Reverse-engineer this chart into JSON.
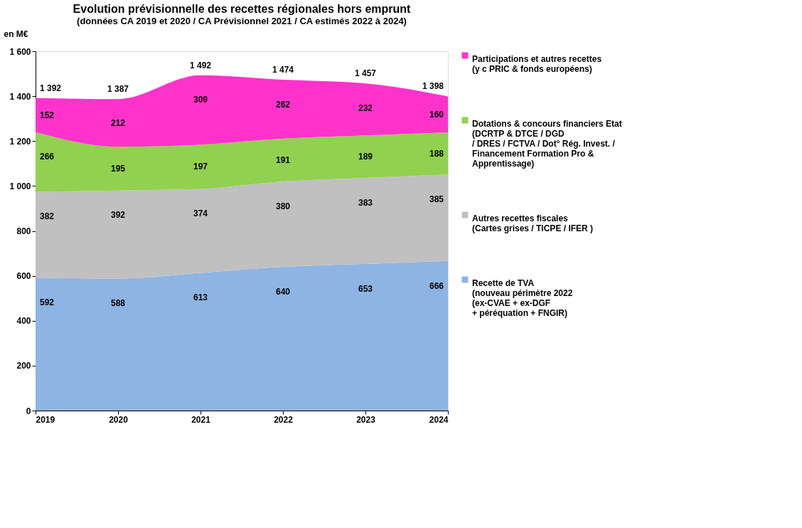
{
  "chart_data": {
    "type": "area",
    "stacked": true,
    "title": "Evolution prévisionnelle des recettes régionales hors emprunt",
    "subtitle": "(données CA 2019 et 2020 /  CA Prévisionnel 2021 / CA estimés 2022 à 2024)",
    "ylabel": "en M€",
    "x": [
      2019,
      2020,
      2021,
      2022,
      2023,
      2024
    ],
    "xlim": [
      2019,
      2024
    ],
    "xticks": [
      2019,
      2020,
      2021,
      2022,
      2023,
      2024
    ],
    "ylim": [
      0,
      1600
    ],
    "yticks": [
      0,
      200,
      400,
      600,
      800,
      {
        "value": 1000,
        "label": "1 000"
      },
      {
        "value": 1200,
        "label": "1 200"
      },
      {
        "value": 1400,
        "label": "1 400"
      },
      {
        "value": 1600,
        "label": "1 600"
      }
    ],
    "series": [
      {
        "name": "Recette de TVA\n(nouveau périmètre 2022\n(ex-CVAE + ex-DGF\n+ péréquation + FNGIR)",
        "color": "#8eb4e3",
        "values": [
          592,
          588,
          613,
          640,
          653,
          666
        ]
      },
      {
        "name": "Autres recettes fiscales\n(Cartes grises / TICPE / IFER )",
        "color": "#c0c0c0",
        "values": [
          382,
          392,
          374,
          380,
          383,
          385
        ]
      },
      {
        "name": "Dotations & concours financiers Etat\n(DCRTP & DTCE / DGD\n/ DRES / FCTVA / Dot° Rég. Invest. /\nFinancement Formation Pro &\nApprentissage)",
        "color": "#92d050",
        "values": [
          266,
          195,
          197,
          191,
          189,
          188
        ]
      },
      {
        "name": "Participations et autres recettes\n(y c PRIC & fonds européens)",
        "color": "#ff33cc",
        "values": [
          152,
          212,
          309,
          262,
          232,
          160
        ]
      }
    ],
    "data_labels": true,
    "totals": [
      "1 392",
      "1 387",
      "1 492",
      "1 474",
      "1 457",
      "1 398"
    ],
    "legend": "right",
    "grid": false
  }
}
